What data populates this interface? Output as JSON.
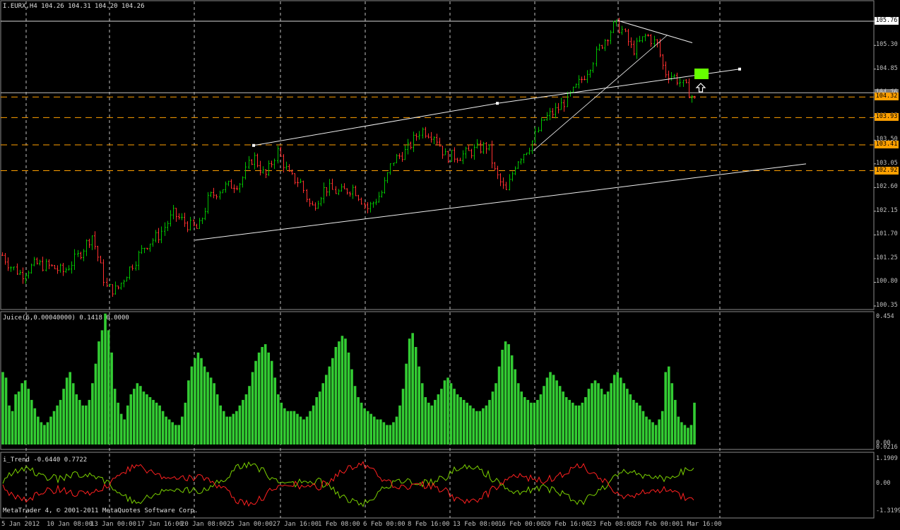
{
  "window": {
    "header": "I.EURX,H4  104.26 104.31 104.20 104.26",
    "copyright": "MetaTrader 4, © 2001-2011 MetaQuotes Software Corp."
  },
  "colors": {
    "background": "#000000",
    "panel": "#001a1a",
    "grid": "#c0c0c0",
    "bull": "#00c000",
    "bear": "#ff3030",
    "level": "#ffa000",
    "histogram": "#33cc33",
    "marker": "#66ff00"
  },
  "price_axis": {
    "labels": [
      "105.76",
      "105.30",
      "104.85",
      "104.40",
      "103.95",
      "103.50",
      "103.05",
      "102.60",
      "102.15",
      "101.70",
      "101.25",
      "100.80",
      "100.35"
    ],
    "current": "104.32",
    "current_hidden": "104.26",
    "levels": [
      "103.93",
      "103.41",
      "102.92"
    ]
  },
  "juice": {
    "title": "Juice(6,0.00040000) 0.1418 0.0000",
    "max": "0.454",
    "min_a": "0.00",
    "min_b": "0.0216"
  },
  "trend": {
    "title": "i_Trend -0.6440 0.7722",
    "max": "1.1909",
    "mid": "0.00",
    "min": "-1.3199"
  },
  "time_axis": [
    "5 Jan 2012",
    "10 Jan 08:00",
    "13 Jan 00:00",
    "17 Jan 16:00",
    "20 Jan 08:00",
    "25 Jan 00:00",
    "27 Jan 16:00",
    "1 Feb 08:00",
    "6 Feb 00:00",
    "8 Feb 16:00",
    "13 Feb 08:00",
    "16 Feb 00:00",
    "20 Feb 16:00",
    "23 Feb 08:00",
    "28 Feb 00:00",
    "1 Mar 16:00"
  ],
  "chart_data": {
    "type": "candlestick",
    "symbol": "I.EURX",
    "timeframe": "H4",
    "ylim": [
      100.35,
      105.76
    ],
    "close_path": [
      [
        1,
        101.35
      ],
      [
        15,
        101.1
      ],
      [
        30,
        100.95
      ],
      [
        50,
        101.15
      ],
      [
        70,
        101.1
      ],
      [
        90,
        101.0
      ],
      [
        110,
        101.3
      ],
      [
        130,
        101.7
      ],
      [
        150,
        100.7
      ],
      [
        165,
        100.65
      ],
      [
        185,
        101.1
      ],
      [
        205,
        101.5
      ],
      [
        225,
        101.7
      ],
      [
        245,
        102.1
      ],
      [
        265,
        101.9
      ],
      [
        280,
        101.8
      ],
      [
        295,
        102.4
      ],
      [
        315,
        102.6
      ],
      [
        340,
        102.7
      ],
      [
        358,
        103.2
      ],
      [
        375,
        102.8
      ],
      [
        392,
        103.3
      ],
      [
        410,
        102.8
      ],
      [
        425,
        102.7
      ],
      [
        440,
        102.2
      ],
      [
        460,
        102.6
      ],
      [
        480,
        102.5
      ],
      [
        500,
        102.6
      ],
      [
        520,
        102.2
      ],
      [
        540,
        102.5
      ],
      [
        555,
        103.1
      ],
      [
        575,
        103.3
      ],
      [
        595,
        103.7
      ],
      [
        615,
        103.6
      ],
      [
        630,
        103.2
      ],
      [
        650,
        103.2
      ],
      [
        670,
        103.3
      ],
      [
        690,
        103.4
      ],
      [
        700,
        102.9
      ],
      [
        716,
        102.5
      ],
      [
        730,
        103.1
      ],
      [
        750,
        103.4
      ],
      [
        770,
        103.9
      ],
      [
        790,
        104.1
      ],
      [
        810,
        104.4
      ],
      [
        830,
        104.8
      ],
      [
        850,
        105.3
      ],
      [
        870,
        105.7
      ],
      [
        880,
        105.6
      ],
      [
        895,
        105.2
      ],
      [
        915,
        105.5
      ],
      [
        930,
        105.3
      ],
      [
        940,
        104.8
      ],
      [
        955,
        104.7
      ],
      [
        970,
        104.5
      ],
      [
        983,
        104.26
      ]
    ],
    "trendlines": [
      {
        "from": [
          359,
          103.4
        ],
        "to": [
          704,
          104.2
        ]
      },
      {
        "from": [
          704,
          104.2
        ],
        "to": [
          1047,
          104.85
        ]
      },
      {
        "from": [
          276,
          101.6
        ],
        "to": [
          1141,
          103.05
        ]
      },
      {
        "from": [
          755,
          103.3
        ],
        "to": [
          945,
          105.5
        ]
      },
      {
        "from": [
          875,
          105.77
        ],
        "to": [
          980,
          105.35
        ]
      }
    ],
    "horizontal_levels": [
      105.76,
      104.32,
      103.93,
      103.41,
      102.92
    ],
    "juice_values": [
      0.26,
      0.24,
      0.14,
      0.12,
      0.18,
      0.19,
      0.22,
      0.23,
      0.2,
      0.16,
      0.13,
      0.1,
      0.08,
      0.07,
      0.08,
      0.1,
      0.12,
      0.14,
      0.16,
      0.2,
      0.24,
      0.26,
      0.22,
      0.18,
      0.16,
      0.14,
      0.14,
      0.16,
      0.22,
      0.29,
      0.37,
      0.41,
      0.47,
      0.41,
      0.33,
      0.2,
      0.15,
      0.11,
      0.09,
      0.14,
      0.18,
      0.2,
      0.22,
      0.21,
      0.19,
      0.18,
      0.17,
      0.16,
      0.15,
      0.14,
      0.12,
      0.1,
      0.09,
      0.08,
      0.07,
      0.07,
      0.1,
      0.15,
      0.23,
      0.28,
      0.31,
      0.33,
      0.31,
      0.28,
      0.26,
      0.24,
      0.22,
      0.18,
      0.14,
      0.12,
      0.1,
      0.1,
      0.11,
      0.12,
      0.14,
      0.16,
      0.18,
      0.21,
      0.26,
      0.3,
      0.33,
      0.35,
      0.36,
      0.33,
      0.3,
      0.24,
      0.18,
      0.15,
      0.13,
      0.12,
      0.12,
      0.12,
      0.11,
      0.1,
      0.09,
      0.1,
      0.12,
      0.14,
      0.17,
      0.19,
      0.22,
      0.25,
      0.28,
      0.31,
      0.35,
      0.37,
      0.39,
      0.38,
      0.33,
      0.27,
      0.21,
      0.17,
      0.15,
      0.13,
      0.12,
      0.11,
      0.1,
      0.09,
      0.09,
      0.08,
      0.07,
      0.07,
      0.08,
      0.1,
      0.14,
      0.2,
      0.29,
      0.38,
      0.4,
      0.35,
      0.28,
      0.22,
      0.17,
      0.15,
      0.14,
      0.16,
      0.18,
      0.2,
      0.23,
      0.24,
      0.22,
      0.2,
      0.18,
      0.17,
      0.16,
      0.15,
      0.14,
      0.13,
      0.12,
      0.12,
      0.13,
      0.14,
      0.16,
      0.19,
      0.22,
      0.28,
      0.34,
      0.37,
      0.36,
      0.32,
      0.27,
      0.22,
      0.19,
      0.17,
      0.16,
      0.15,
      0.15,
      0.16,
      0.18,
      0.21,
      0.24,
      0.26,
      0.25,
      0.23,
      0.21,
      0.19,
      0.17,
      0.16,
      0.15,
      0.14,
      0.14,
      0.15,
      0.17,
      0.2,
      0.22,
      0.23,
      0.22,
      0.2,
      0.18,
      0.19,
      0.22,
      0.25,
      0.26,
      0.24,
      0.22,
      0.2,
      0.18,
      0.16,
      0.15,
      0.14,
      0.12,
      0.1,
      0.09,
      0.08,
      0.07,
      0.09,
      0.12,
      0.26,
      0.28,
      0.22,
      0.16,
      0.1,
      0.08,
      0.07,
      0.06,
      0.07,
      0.15
    ]
  }
}
